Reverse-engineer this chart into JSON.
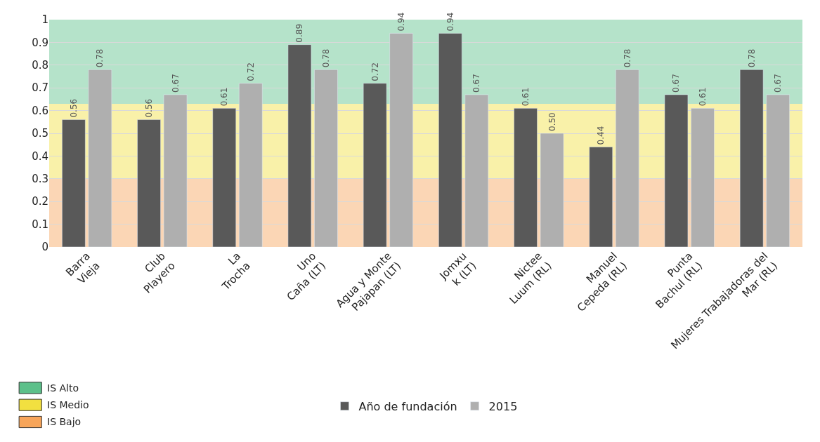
{
  "chart_data": {
    "type": "bar",
    "categories": [
      "Barra\nVieja",
      "Club\nPlayero",
      "La\nTrocha",
      "Uno\nCaña (LT)",
      "Agua y Monte\nPajapan (LT)",
      "Jomxu\nk (LT)",
      "Nictee\nLuum (RL)",
      "Manuel\nCepeda (RL)",
      "Punta\nBachul (RL)",
      "Mujeres Trabajadoras del\nMar (RL)"
    ],
    "series": [
      {
        "name": "Año de fundación",
        "color": "#595959",
        "values": [
          0.56,
          0.56,
          0.61,
          0.89,
          0.72,
          0.94,
          0.61,
          0.44,
          0.67,
          0.78
        ],
        "value_labels": [
          "0.56",
          "0.56",
          "0.61",
          "0.89",
          "0.72",
          "0.94",
          "0.61",
          "0.44",
          "0.67",
          "0.78"
        ]
      },
      {
        "name": "2015",
        "color": "#afafaf",
        "values": [
          0.78,
          0.67,
          0.72,
          0.78,
          0.94,
          0.67,
          0.5,
          0.78,
          0.61,
          0.67
        ],
        "value_labels": [
          "0.78",
          "0.67",
          "0.72",
          "0.78",
          "0.94",
          "0.67",
          "0.50",
          "0.78",
          "0.61",
          "0.67"
        ]
      }
    ],
    "ylim": [
      0,
      1
    ],
    "yticks": [
      0,
      0.1,
      0.2,
      0.3,
      0.4,
      0.5,
      0.6,
      0.7,
      0.8,
      0.9,
      1
    ],
    "grid": "y",
    "legend": "bottom",
    "bands": [
      {
        "axis": "y",
        "from": 0.63,
        "to": 1,
        "label": "IS Alto",
        "color": "#5cc08a"
      },
      {
        "axis": "y",
        "from": 0.3,
        "to": 0.63,
        "label": "IS Medio",
        "color": "#f2e040"
      },
      {
        "axis": "y",
        "from": 0,
        "to": 0.3,
        "label": "IS Bajo",
        "color": "#f7a55a"
      }
    ]
  }
}
